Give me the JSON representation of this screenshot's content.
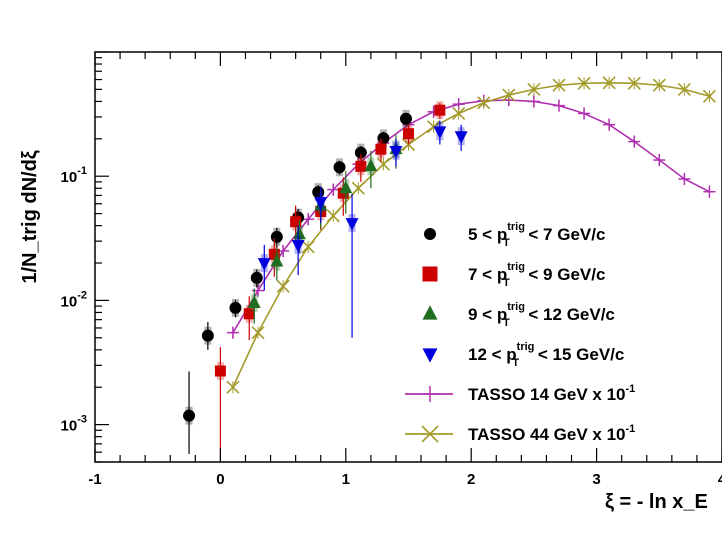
{
  "chart_data": {
    "type": "scatter",
    "title": "",
    "xlabel": "ξ = - ln x_E",
    "ylabel": "1/N_trig dN/dξ",
    "xlim": [
      -1,
      4
    ],
    "ylim": [
      0.0005,
      1.0
    ],
    "yscale": "log",
    "x_ticks": [
      "-1",
      "0",
      "1",
      "2",
      "3",
      "4"
    ],
    "y_ticks": [
      {
        "base": "10",
        "exp": "-3",
        "value": 0.001
      },
      {
        "base": "10",
        "exp": "-2",
        "value": 0.01
      },
      {
        "base": "10",
        "exp": "-1",
        "value": 0.1
      }
    ],
    "legend_position": "bottom-right",
    "series": [
      {
        "name": "5 < p_T^trig < 7 GeV/c",
        "label_pre": "5 < p",
        "label_sub": "T",
        "label_sup": "trig",
        "label_post": " < 7 GeV/c",
        "marker": "circle",
        "color": "#000000",
        "line": false,
        "x": [
          -0.25,
          -0.1,
          0.12,
          0.29,
          0.45,
          0.62,
          0.78,
          0.95,
          1.12,
          1.3,
          1.48
        ],
        "y": [
          0.00118,
          0.0052,
          0.0087,
          0.0152,
          0.0325,
          0.0465,
          0.0745,
          0.118,
          0.155,
          0.202,
          0.29
        ],
        "err_lo": [
          0.0006,
          0.0012,
          0.0014,
          0.0025,
          0.006,
          0.008,
          0.01,
          0.015,
          0.02,
          0.025,
          0.03
        ],
        "err_hi": [
          0.0015,
          0.0015,
          0.0014,
          0.0025,
          0.006,
          0.008,
          0.01,
          0.015,
          0.02,
          0.025,
          0.03
        ]
      },
      {
        "name": "7 < p_T^trig < 9 GeV/c",
        "label_pre": "7 < p",
        "label_sub": "T",
        "label_sup": "trig",
        "label_post": " < 9 GeV/c",
        "marker": "square",
        "color": "#cc0000",
        "line": false,
        "x": [
          0.0,
          0.23,
          0.43,
          0.6,
          0.8,
          0.98,
          1.12,
          1.28,
          1.5,
          1.75
        ],
        "y": [
          0.0027,
          0.0078,
          0.0235,
          0.043,
          0.052,
          0.073,
          0.12,
          0.165,
          0.22,
          0.34
        ],
        "err_lo": [
          0.00255,
          0.003,
          0.008,
          0.015,
          0.015,
          0.025,
          0.03,
          0.035,
          0.04,
          0.05
        ],
        "err_hi": [
          0.0015,
          0.003,
          0.008,
          0.015,
          0.015,
          0.025,
          0.03,
          0.035,
          0.04,
          0.05
        ]
      },
      {
        "name": "9 < p_T^trig < 12 GeV/c",
        "label_pre": "9 < p",
        "label_sub": "T",
        "label_sup": "trig",
        "label_post": " < 12 GeV/c",
        "marker": "triangle-up",
        "color": "#1f6e1f",
        "line": false,
        "x": [
          0.27,
          0.45,
          0.63,
          0.8,
          1.0,
          1.2,
          1.4
        ],
        "y": [
          0.0095,
          0.0205,
          0.034,
          0.058,
          0.08,
          0.12,
          0.165
        ],
        "err_lo": [
          0.003,
          0.006,
          0.01,
          0.02,
          0.03,
          0.04,
          0.05
        ],
        "err_hi": [
          0.003,
          0.006,
          0.01,
          0.02,
          0.03,
          0.04,
          0.05
        ]
      },
      {
        "name": "12 < p_T^trig < 15 GeV/c",
        "label_pre": "12 < p",
        "label_sub": "T",
        "label_sup": "trig",
        "label_post": " < 15 GeV/c",
        "marker": "triangle-down",
        "color": "#0000dd",
        "line": false,
        "x": [
          0.35,
          0.62,
          0.8,
          1.05,
          1.4,
          1.75,
          1.92
        ],
        "y": [
          0.02,
          0.028,
          0.062,
          0.042,
          0.16,
          0.23,
          0.21
        ],
        "err_lo": [
          0.008,
          0.012,
          0.02,
          0.037,
          0.04,
          0.05,
          0.05
        ],
        "err_hi": [
          0.008,
          0.012,
          0.02,
          0.03,
          0.04,
          0.05,
          0.05
        ]
      },
      {
        "name": "TASSO 14 GeV x 10^-1",
        "label_pre": "TASSO 14 GeV x 10",
        "label_sup": "-1",
        "marker": "plus",
        "color": "#b030b0",
        "line": true,
        "x": [
          0.1,
          0.3,
          0.5,
          0.7,
          0.9,
          1.1,
          1.3,
          1.5,
          1.7,
          1.9,
          2.1,
          2.3,
          2.5,
          2.7,
          2.9,
          3.1,
          3.3,
          3.5,
          3.7,
          3.9
        ],
        "y": [
          0.0055,
          0.012,
          0.025,
          0.045,
          0.078,
          0.125,
          0.185,
          0.26,
          0.33,
          0.38,
          0.405,
          0.41,
          0.4,
          0.37,
          0.32,
          0.26,
          0.19,
          0.135,
          0.095,
          0.075
        ]
      },
      {
        "name": "TASSO 44 GeV x 10^-1",
        "label_pre": "TASSO 44 GeV x 10",
        "label_sup": "-1",
        "marker": "cross",
        "color": "#a39b2a",
        "line": true,
        "x": [
          0.1,
          0.3,
          0.5,
          0.7,
          0.9,
          1.1,
          1.3,
          1.5,
          1.7,
          1.9,
          2.1,
          2.3,
          2.5,
          2.7,
          2.9,
          3.1,
          3.3,
          3.5,
          3.7,
          3.9
        ],
        "y": [
          0.002,
          0.0055,
          0.013,
          0.027,
          0.048,
          0.08,
          0.125,
          0.18,
          0.25,
          0.32,
          0.39,
          0.45,
          0.5,
          0.54,
          0.56,
          0.565,
          0.56,
          0.54,
          0.5,
          0.44
        ]
      }
    ]
  }
}
